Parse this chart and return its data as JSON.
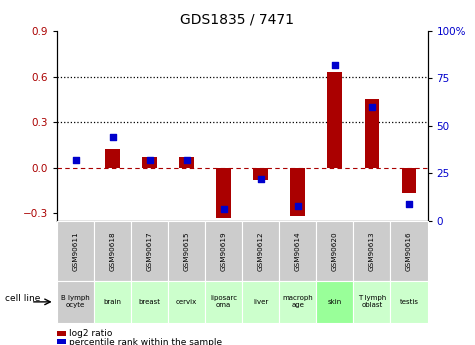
{
  "title": "GDS1835 / 7471",
  "samples": [
    "GSM90611",
    "GSM90618",
    "GSM90617",
    "GSM90615",
    "GSM90619",
    "GSM90612",
    "GSM90614",
    "GSM90620",
    "GSM90613",
    "GSM90616"
  ],
  "cell_lines": [
    "B lymph\nocyte",
    "brain",
    "breast",
    "cervix",
    "liposarc\noma",
    "liver",
    "macroph\nage",
    "skin",
    "T lymph\noblast",
    "testis"
  ],
  "cell_line_colors": [
    "#cccccc",
    "#ccffcc",
    "#ccffcc",
    "#ccffcc",
    "#ccffcc",
    "#ccffcc",
    "#ccffcc",
    "#99ff99",
    "#ccffcc",
    "#ccffcc"
  ],
  "log2_ratio": [
    0.0,
    0.12,
    0.07,
    0.07,
    -0.33,
    -0.08,
    -0.32,
    0.63,
    0.45,
    -0.17
  ],
  "percentile_rank": [
    0.32,
    0.44,
    0.32,
    0.32,
    0.06,
    0.22,
    0.08,
    0.82,
    0.6,
    0.09
  ],
  "bar_color": "#aa0000",
  "dot_color": "#0000cc",
  "left_ylim": [
    -0.35,
    0.9
  ],
  "right_ylim": [
    0,
    1.0
  ],
  "left_yticks": [
    -0.3,
    0.0,
    0.3,
    0.6,
    0.9
  ],
  "right_yticks": [
    0,
    0.25,
    0.5,
    0.75,
    1.0
  ],
  "right_yticklabels": [
    "0",
    "25",
    "50",
    "75",
    "100%"
  ],
  "hline_y": [
    0.3,
    0.6
  ],
  "zero_line_y": 0.0,
  "legend_red": "log2 ratio",
  "legend_blue": "percentile rank within the sample",
  "xlabel_label": "cell line",
  "sample_box_color": "#cccccc"
}
